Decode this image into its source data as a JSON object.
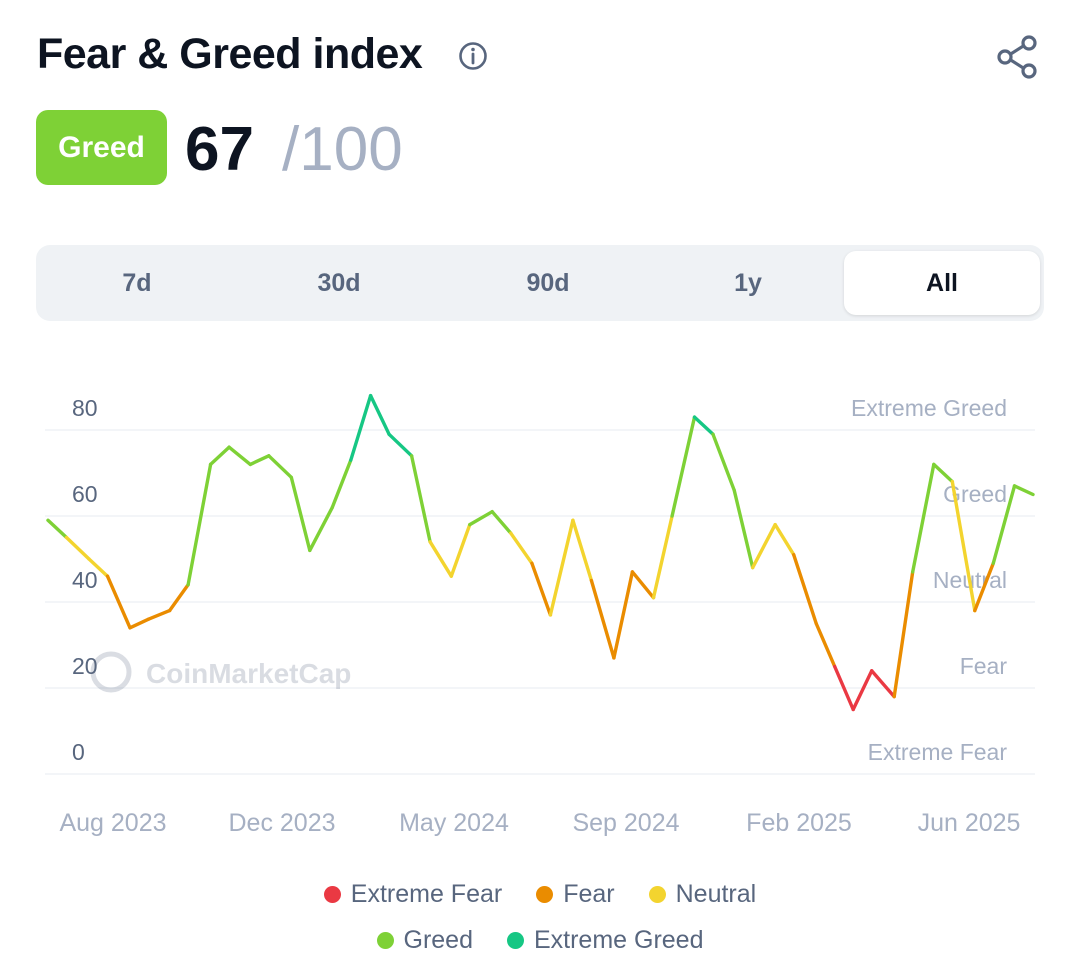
{
  "header": {
    "title": "Fear & Greed index",
    "info_icon": "info-icon",
    "share_icon": "share-icon"
  },
  "index": {
    "label": "Greed",
    "value": "67",
    "max": "/100",
    "label_color": "#7ed136"
  },
  "tabs": [
    {
      "label": "7d",
      "active": false
    },
    {
      "label": "30d",
      "active": false
    },
    {
      "label": "90d",
      "active": false
    },
    {
      "label": "1y",
      "active": false
    },
    {
      "label": "All",
      "active": true
    }
  ],
  "chart_data": {
    "type": "line",
    "y_ticks": [
      "80",
      "60",
      "40",
      "20",
      "0"
    ],
    "ylim": [
      0,
      100
    ],
    "x_tick_labels": [
      "Aug 2023",
      "Dec 2023",
      "May 2024",
      "Sep 2024",
      "Feb 2025",
      "Jun 2025"
    ],
    "zone_labels": [
      "Extreme Greed",
      "Greed",
      "Neutral",
      "Fear",
      "Extreme Fear"
    ],
    "watermark": "CoinMarketCap",
    "grid": true,
    "colors": {
      "extreme_fear": "#ea3943",
      "fear": "#ea8c00",
      "neutral": "#f3d42f",
      "greed": "#7ed136",
      "extreme_greed": "#16c784"
    },
    "series": [
      {
        "x": [
          "2023-07-01",
          "2023-07-15",
          "2023-08-01",
          "2023-08-15",
          "2023-09-01",
          "2023-09-15",
          "2023-10-01",
          "2023-10-15",
          "2023-11-01",
          "2023-11-15",
          "2023-12-01",
          "2023-12-15",
          "2024-01-01",
          "2024-01-15",
          "2024-02-01",
          "2024-02-15",
          "2024-03-01",
          "2024-03-15",
          "2024-04-01",
          "2024-04-15",
          "2024-05-01",
          "2024-05-15",
          "2024-06-01",
          "2024-06-15",
          "2024-07-01",
          "2024-07-15",
          "2024-08-01",
          "2024-08-15",
          "2024-09-01",
          "2024-09-15",
          "2024-10-01",
          "2024-10-15",
          "2024-11-01",
          "2024-11-15",
          "2024-12-01",
          "2024-12-15",
          "2025-01-01",
          "2025-01-15",
          "2025-02-01",
          "2025-02-15",
          "2025-03-01",
          "2025-03-15",
          "2025-04-01",
          "2025-04-15",
          "2025-05-01",
          "2025-05-15",
          "2025-06-01",
          "2025-06-15",
          "2025-07-01",
          "2025-07-15"
        ],
        "values": [
          59,
          55,
          50,
          46,
          34,
          36,
          38,
          44,
          72,
          76,
          72,
          74,
          69,
          52,
          62,
          73,
          88,
          79,
          74,
          54,
          46,
          58,
          61,
          56,
          49,
          37,
          59,
          45,
          27,
          47,
          41,
          60,
          83,
          79,
          66,
          48,
          58,
          51,
          35,
          25,
          15,
          24,
          18,
          47,
          72,
          68,
          38,
          49,
          67,
          65
        ]
      }
    ]
  },
  "legend": [
    {
      "label": "Extreme Fear",
      "color": "#ea3943"
    },
    {
      "label": "Fear",
      "color": "#ea8c00"
    },
    {
      "label": "Neutral",
      "color": "#f3d42f"
    },
    {
      "label": "Greed",
      "color": "#7ed136"
    },
    {
      "label": "Extreme Greed",
      "color": "#16c784"
    }
  ]
}
